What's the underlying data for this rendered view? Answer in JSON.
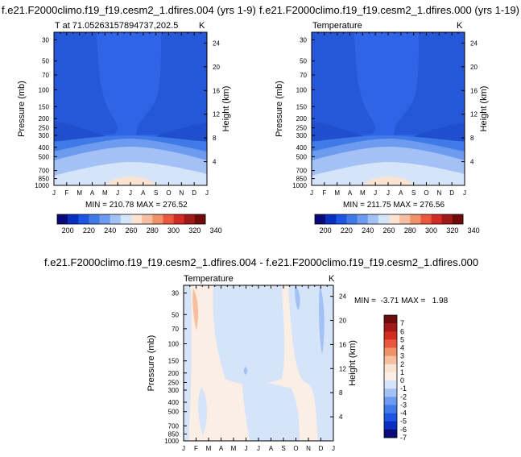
{
  "panels": [
    {
      "id": "p1",
      "title": "f.e21.F2000climo.f19_f19.cesm2_1.dfires.004 (yrs 1-9)",
      "left_label": "T at 71.05263157894737,202.5",
      "right_label": "K",
      "stats": "MIN = 210.78 MAX = 276.52"
    },
    {
      "id": "p2",
      "title": "f.e21.F2000climo.f19_f19.cesm2_1.dfires.000 (yrs 1-19)",
      "left_label": "Temperature",
      "right_label": "K",
      "stats": "MIN = 211.75 MAX = 276.56"
    },
    {
      "id": "p3",
      "title": "f.e21.F2000climo.f19_f19.cesm2_1.dfires.004 - f.e21.F2000climo.f19_f19.cesm2_1.dfires.000",
      "left_label": "Temperature",
      "right_label": "K",
      "stats": "MIN =  -3.71 MAX =   1.98"
    }
  ],
  "chart_data": [
    {
      "type": "heatmap",
      "title": "f.e21.F2000climo.f19_f19.cesm2_1.dfires.004 (yrs 1-9)",
      "subtitle": "T at 71.05263157894737,202.5",
      "units": "K",
      "xlabel": "",
      "ylabel": "Pressure (mb)",
      "y2label": "Height (km)",
      "x_ticks": [
        "J",
        "F",
        "M",
        "A",
        "M",
        "J",
        "J",
        "A",
        "S",
        "O",
        "N",
        "D",
        "J"
      ],
      "y_ticks": [
        30,
        50,
        70,
        100,
        150,
        200,
        250,
        300,
        400,
        500,
        700,
        850,
        1000
      ],
      "y2_ticks": [
        4,
        8,
        12,
        16,
        20,
        24
      ],
      "ylim": [
        1000,
        25
      ],
      "min": 210.78,
      "max": 276.52,
      "colorbar_levels": [
        200,
        220,
        240,
        260,
        280,
        300,
        320,
        340
      ]
    },
    {
      "type": "heatmap",
      "title": "f.e21.F2000climo.f19_f19.cesm2_1.dfires.000 (yrs 1-19)",
      "subtitle": "Temperature",
      "units": "K",
      "xlabel": "",
      "ylabel": "Pressure (mb)",
      "y2label": "Height (km)",
      "x_ticks": [
        "J",
        "F",
        "M",
        "A",
        "M",
        "J",
        "J",
        "A",
        "S",
        "O",
        "N",
        "D",
        "J"
      ],
      "y_ticks": [
        30,
        50,
        70,
        100,
        150,
        200,
        250,
        300,
        400,
        500,
        700,
        850,
        1000
      ],
      "y2_ticks": [
        4,
        8,
        12,
        16,
        20,
        24
      ],
      "ylim": [
        1000,
        25
      ],
      "min": 211.75,
      "max": 276.56,
      "colorbar_levels": [
        200,
        220,
        240,
        260,
        280,
        300,
        320,
        340
      ]
    },
    {
      "type": "heatmap",
      "title": "f.e21.F2000climo.f19_f19.cesm2_1.dfires.004 - f.e21.F2000climo.f19_f19.cesm2_1.dfires.000",
      "subtitle": "Temperature",
      "units": "K",
      "xlabel": "",
      "ylabel": "Pressure (mb)",
      "y2label": "Height (km)",
      "x_ticks": [
        "J",
        "F",
        "M",
        "A",
        "M",
        "J",
        "J",
        "A",
        "S",
        "O",
        "N",
        "D",
        "J"
      ],
      "y_ticks": [
        30,
        50,
        70,
        100,
        150,
        200,
        250,
        300,
        400,
        500,
        700,
        850,
        1000
      ],
      "y2_ticks": [
        4,
        8,
        12,
        16,
        20,
        24
      ],
      "ylim": [
        1000,
        25
      ],
      "min": -3.71,
      "max": 1.98,
      "colorbar_levels": [
        7,
        6,
        5,
        4,
        3,
        2,
        1,
        0,
        -1,
        -2,
        -3,
        -4,
        -5,
        -6,
        -7
      ]
    }
  ],
  "colors": {
    "abs_bar": [
      "#0a0a7a",
      "#0b2fc0",
      "#1d55e0",
      "#3f7ae8",
      "#6d9bf0",
      "#a3c1f5",
      "#d6e4fa",
      "#fbe3d3",
      "#f6bfa0",
      "#f1916a",
      "#e9583e",
      "#d22b22",
      "#a0181a",
      "#6e0c0c"
    ],
    "diff_bar": [
      "#6e0c0c",
      "#a0181a",
      "#d22b22",
      "#e9583e",
      "#f1916a",
      "#f6bfa0",
      "#fbe3d3",
      "#fbeee4",
      "#d6e4fa",
      "#a3c1f5",
      "#6d9bf0",
      "#3f7ae8",
      "#1d55e0",
      "#0b2fc0",
      "#0a0a7a"
    ]
  }
}
